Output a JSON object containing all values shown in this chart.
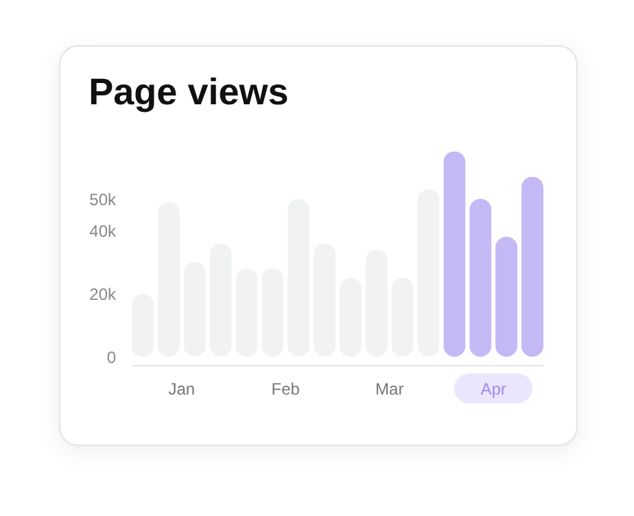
{
  "chart_data": {
    "type": "bar",
    "title": "Page views",
    "categories": [
      null,
      "Jan",
      null,
      null,
      null,
      "Feb",
      null,
      null,
      null,
      "Mar",
      null,
      null,
      null,
      "Apr",
      null,
      null
    ],
    "values": [
      20000,
      49000,
      30000,
      36000,
      28000,
      28000,
      50000,
      36000,
      25000,
      34000,
      25000,
      53000,
      65000,
      50000,
      38000,
      57000
    ],
    "colors": [
      "#f1f3f2",
      "#f1f3f2",
      "#f1f3f2",
      "#f1f3f2",
      "#f1f3f2",
      "#f1f3f2",
      "#f1f3f2",
      "#f1f3f2",
      "#f1f3f2",
      "#f1f3f2",
      "#f1f3f2",
      "#f1f3f2",
      "#c4b9f5",
      "#c4b9f5",
      "#c4b9f5",
      "#c4b9f5"
    ],
    "ylim": [
      0,
      66000
    ],
    "yticks": [
      0,
      {
        "value": 20000,
        "label": "20k"
      },
      {
        "value": 40000,
        "label": "40k"
      },
      {
        "value": 50000,
        "label": "50k"
      }
    ],
    "grid": false
  }
}
